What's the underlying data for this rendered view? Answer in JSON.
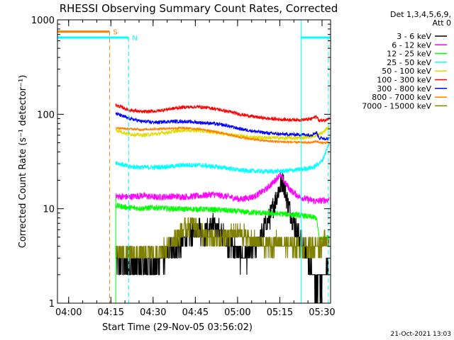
{
  "chart_data": {
    "type": "line",
    "title": "RHESSI Observing Summary Count Rates, Corrected",
    "xlabel": "Start Time (29-Nov-05 03:56:02)",
    "ylabel": "Corrected Count Rate (s⁻¹ detector⁻¹)",
    "y_scale": "log",
    "ylim": [
      1,
      1000
    ],
    "xlim_minutes": [
      0,
      97
    ],
    "x_ticks": [
      {
        "t": 3.97,
        "label": "04:00"
      },
      {
        "t": 18.97,
        "label": "04:15"
      },
      {
        "t": 33.97,
        "label": "04:30"
      },
      {
        "t": 48.97,
        "label": "04:45"
      },
      {
        "t": 63.97,
        "label": "05:00"
      },
      {
        "t": 78.97,
        "label": "05:15"
      },
      {
        "t": 93.97,
        "label": "05:30"
      }
    ],
    "y_ticks": [
      {
        "v": 1,
        "label": "1"
      },
      {
        "v": 10,
        "label": "10"
      },
      {
        "v": 100,
        "label": "100"
      },
      {
        "v": 1000,
        "label": "1000"
      }
    ],
    "grid": false,
    "legend_position": "right",
    "legend_header": [
      "Det 1,3,4,5,6,9,",
      "Att 0"
    ],
    "data_start_min": 20.7,
    "data_end_min": 96.6,
    "series": [
      {
        "name": "3 - 6 keV",
        "color": "#000000",
        "points": [
          [
            20.7,
            3.0
          ],
          [
            25,
            2.5
          ],
          [
            30,
            2.4
          ],
          [
            35,
            2.6
          ],
          [
            40,
            3.5
          ],
          [
            45,
            4.6
          ],
          [
            48,
            5.5
          ],
          [
            50,
            6.4
          ],
          [
            52,
            5.2
          ],
          [
            55,
            6.8
          ],
          [
            58,
            5.6
          ],
          [
            62,
            4.0
          ],
          [
            66,
            3.0
          ],
          [
            70,
            3.8
          ],
          [
            73,
            5.8
          ],
          [
            76,
            9.0
          ],
          [
            78,
            14.0
          ],
          [
            80,
            20.0
          ],
          [
            82,
            11.0
          ],
          [
            84,
            7.0
          ],
          [
            86,
            5.0
          ],
          [
            88,
            3.4
          ],
          [
            90,
            2.2
          ],
          [
            92,
            1.6
          ],
          [
            95,
            1.9
          ],
          [
            96.6,
            2.5
          ]
        ]
      },
      {
        "name": "6 - 12 keV",
        "color": "#ff00ff",
        "points": [
          [
            20.7,
            13.5
          ],
          [
            25,
            13.3
          ],
          [
            30,
            13.8
          ],
          [
            35,
            13.2
          ],
          [
            40,
            13.5
          ],
          [
            45,
            13.4
          ],
          [
            50,
            13.6
          ],
          [
            55,
            14.2
          ],
          [
            60,
            13.5
          ],
          [
            65,
            12.6
          ],
          [
            70,
            13.5
          ],
          [
            74,
            16.0
          ],
          [
            77,
            19.5
          ],
          [
            79,
            23.0
          ],
          [
            81,
            18.5
          ],
          [
            83,
            15.5
          ],
          [
            86,
            13.3
          ],
          [
            89,
            12.5
          ],
          [
            92,
            12.0
          ],
          [
            96.6,
            12.5
          ]
        ]
      },
      {
        "name": "12 - 25 keV",
        "color": "#00ff00",
        "points": [
          [
            20.7,
            10.8
          ],
          [
            25,
            10.3
          ],
          [
            30,
            10.1
          ],
          [
            35,
            10.3
          ],
          [
            40,
            10.0
          ],
          [
            45,
            9.9
          ],
          [
            50,
            9.9
          ],
          [
            55,
            9.8
          ],
          [
            60,
            9.6
          ],
          [
            65,
            9.3
          ],
          [
            70,
            9.1
          ],
          [
            75,
            8.9
          ],
          [
            80,
            8.8
          ],
          [
            85,
            8.6
          ],
          [
            90,
            8.2
          ],
          [
            92,
            8.0
          ],
          [
            93,
            4.8
          ],
          [
            96.6,
            5.0
          ]
        ]
      },
      {
        "name": "25 - 50 keV",
        "color": "#00ffff",
        "points": [
          [
            20.7,
            31
          ],
          [
            25,
            28
          ],
          [
            30,
            27.5
          ],
          [
            35,
            27.5
          ],
          [
            40,
            28
          ],
          [
            45,
            29
          ],
          [
            50,
            29
          ],
          [
            55,
            28
          ],
          [
            60,
            27
          ],
          [
            65,
            25.5
          ],
          [
            70,
            25
          ],
          [
            75,
            24.8
          ],
          [
            80,
            25
          ],
          [
            85,
            25.8
          ],
          [
            88,
            26.5
          ],
          [
            91,
            27.5
          ],
          [
            94,
            32
          ],
          [
            96.6,
            50
          ]
        ]
      },
      {
        "name": "50 - 100 keV",
        "color": "#dddd00",
        "points": [
          [
            20.7,
            68
          ],
          [
            25,
            62
          ],
          [
            30,
            60
          ],
          [
            35,
            62
          ],
          [
            40,
            65
          ],
          [
            45,
            68
          ],
          [
            50,
            67
          ],
          [
            55,
            65
          ],
          [
            60,
            62
          ],
          [
            65,
            59
          ],
          [
            70,
            57
          ],
          [
            75,
            56.5
          ],
          [
            80,
            56
          ],
          [
            85,
            56
          ],
          [
            88,
            57
          ],
          [
            91,
            59
          ],
          [
            94,
            63
          ],
          [
            96.6,
            75
          ]
        ]
      },
      {
        "name": "100 - 300 keV",
        "color": "#ff0000",
        "points": [
          [
            20.7,
            125
          ],
          [
            25,
            112
          ],
          [
            30,
            106
          ],
          [
            35,
            108
          ],
          [
            40,
            114
          ],
          [
            45,
            119
          ],
          [
            50,
            120
          ],
          [
            55,
            116
          ],
          [
            60,
            108
          ],
          [
            65,
            100
          ],
          [
            70,
            94
          ],
          [
            75,
            90
          ],
          [
            80,
            88
          ],
          [
            85,
            87.5
          ],
          [
            88,
            88
          ],
          [
            90,
            89
          ],
          [
            92,
            95
          ],
          [
            93,
            85
          ],
          [
            96.6,
            90
          ]
        ]
      },
      {
        "name": "300 - 800 keV",
        "color": "#0000ff",
        "points": [
          [
            20.7,
            102
          ],
          [
            25,
            91
          ],
          [
            30,
            84
          ],
          [
            35,
            82
          ],
          [
            40,
            84
          ],
          [
            45,
            84
          ],
          [
            50,
            82
          ],
          [
            55,
            80
          ],
          [
            60,
            76
          ],
          [
            65,
            70
          ],
          [
            70,
            66
          ],
          [
            75,
            63
          ],
          [
            80,
            61.5
          ],
          [
            85,
            61
          ],
          [
            88,
            61
          ],
          [
            90,
            60.5
          ],
          [
            92,
            64
          ],
          [
            93,
            56
          ],
          [
            96.6,
            55
          ]
        ]
      },
      {
        "name": "800 - 7000 keV",
        "color": "#ff8000",
        "points": [
          [
            20.7,
            72
          ],
          [
            25,
            70
          ],
          [
            30,
            69
          ],
          [
            35,
            70
          ],
          [
            40,
            71
          ],
          [
            45,
            71.5
          ],
          [
            50,
            70
          ],
          [
            55,
            66
          ],
          [
            60,
            62
          ],
          [
            65,
            57
          ],
          [
            70,
            54
          ],
          [
            75,
            52
          ],
          [
            80,
            51
          ],
          [
            85,
            50.5
          ],
          [
            90,
            50
          ],
          [
            92,
            52
          ],
          [
            93,
            50
          ],
          [
            96.6,
            50
          ]
        ]
      },
      {
        "name": "7000 - 15000 keV",
        "color": "#808000",
        "points": [
          [
            20.7,
            3.5
          ],
          [
            25,
            3.3
          ],
          [
            30,
            3.2
          ],
          [
            35,
            3.3
          ],
          [
            40,
            4.2
          ],
          [
            45,
            6.2
          ],
          [
            48,
            7.0
          ],
          [
            50,
            6.0
          ],
          [
            53,
            5.0
          ],
          [
            57,
            4.7
          ],
          [
            60,
            5.0
          ],
          [
            63,
            5.6
          ],
          [
            67,
            5.2
          ],
          [
            70,
            4.5
          ],
          [
            74,
            4.0
          ],
          [
            78,
            4.5
          ],
          [
            82,
            4.2
          ],
          [
            86,
            4.0
          ],
          [
            90,
            4.0
          ],
          [
            92,
            3.9
          ],
          [
            94,
            4.4
          ],
          [
            96.6,
            4.6
          ]
        ]
      }
    ],
    "annotations": [
      {
        "label": "N",
        "color": "#00ffff",
        "bar_y": 650,
        "bar_t": [
          0,
          25.3
        ],
        "dashed_line_t": 25.3
      },
      {
        "label": "S",
        "color": "#ff8000",
        "bar_y": 750,
        "bar_t": [
          0,
          18.5
        ],
        "dashed_line_t": 18.5
      },
      {
        "label": "",
        "color": "#00ffff",
        "bar_y": 650,
        "bar_t": [
          86.5,
          97
        ],
        "dashed_line_t": 96.2,
        "solid_line_t": 86.5
      }
    ]
  },
  "footer": {
    "date": "21-Oct-2021 13:03"
  }
}
